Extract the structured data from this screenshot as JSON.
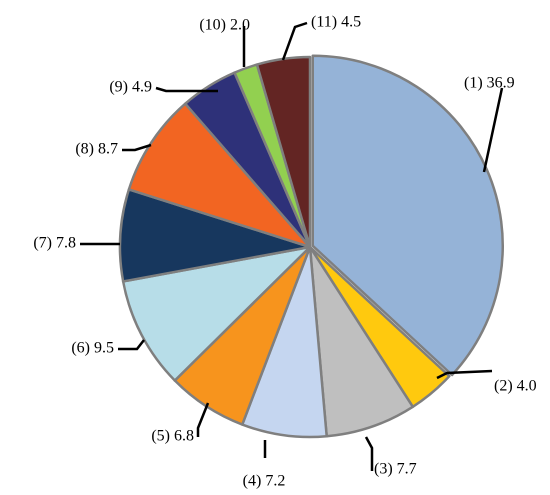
{
  "chart_data": {
    "type": "pie",
    "title": "",
    "legend": "none",
    "start_angle_deg": 0,
    "direction": "clockwise",
    "slices": [
      {
        "label": "(1) 36.9",
        "value": 36.9,
        "color": "#95b3d7"
      },
      {
        "label": "(2) 4.0",
        "value": 4.0,
        "color": "#ffc90e"
      },
      {
        "label": "(3) 7.7",
        "value": 7.7,
        "color": "#bfbfbf"
      },
      {
        "label": "(4) 7.2",
        "value": 7.2,
        "color": "#c5d6f0"
      },
      {
        "label": "(5) 6.8",
        "value": 6.8,
        "color": "#f7941d"
      },
      {
        "label": "(6) 9.5",
        "value": 9.5,
        "color": "#b7dde8"
      },
      {
        "label": "(7) 7.8",
        "value": 7.8,
        "color": "#17375e"
      },
      {
        "label": "(8) 8.7",
        "value": 8.7,
        "color": "#f26522"
      },
      {
        "label": "(9) 4.9",
        "value": 4.9,
        "color": "#2e3179"
      },
      {
        "label": "(10) 2.0",
        "value": 2.0,
        "color": "#92d050"
      },
      {
        "label": "(11) 4.5",
        "value": 4.5,
        "color": "#632523"
      }
    ]
  }
}
